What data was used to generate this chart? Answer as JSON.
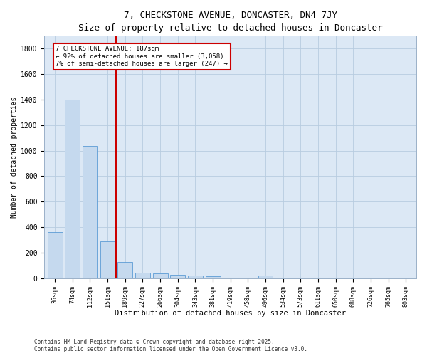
{
  "title": "7, CHECKSTONE AVENUE, DONCASTER, DN4 7JY",
  "subtitle": "Size of property relative to detached houses in Doncaster",
  "xlabel": "Distribution of detached houses by size in Doncaster",
  "ylabel": "Number of detached properties",
  "categories": [
    "36sqm",
    "74sqm",
    "112sqm",
    "151sqm",
    "189sqm",
    "227sqm",
    "266sqm",
    "304sqm",
    "343sqm",
    "381sqm",
    "419sqm",
    "458sqm",
    "496sqm",
    "534sqm",
    "573sqm",
    "611sqm",
    "650sqm",
    "688sqm",
    "726sqm",
    "765sqm",
    "803sqm"
  ],
  "values": [
    360,
    1400,
    1035,
    290,
    130,
    45,
    38,
    30,
    22,
    18,
    0,
    0,
    22,
    0,
    0,
    0,
    0,
    0,
    0,
    0,
    0
  ],
  "bar_color": "#c5d9ee",
  "bar_edge_color": "#5b9bd5",
  "bg_color": "#dce8f5",
  "grid_color": "#b8cce0",
  "vline_color": "#cc0000",
  "vline_pos": 3.5,
  "annotation_line1": "7 CHECKSTONE AVENUE: 187sqm",
  "annotation_line2": "← 92% of detached houses are smaller (3,058)",
  "annotation_line3": "7% of semi-detached houses are larger (247) →",
  "annotation_box_edgecolor": "#cc0000",
  "footnote_line1": "Contains HM Land Registry data © Crown copyright and database right 2025.",
  "footnote_line2": "Contains public sector information licensed under the Open Government Licence v3.0.",
  "ylim": [
    0,
    1900
  ],
  "yticks": [
    0,
    200,
    400,
    600,
    800,
    1000,
    1200,
    1400,
    1600,
    1800
  ]
}
